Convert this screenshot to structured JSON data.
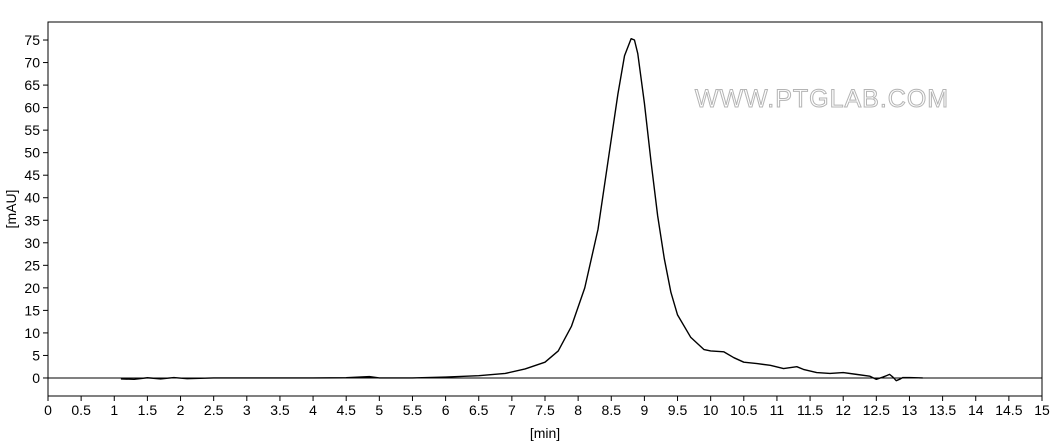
{
  "chart_data": {
    "type": "line",
    "title": "",
    "xlabel": "[min]",
    "ylabel": "[mAU]",
    "xlim": [
      0,
      15
    ],
    "ylim": [
      -4,
      79
    ],
    "x_ticks": [
      0,
      0.5,
      1,
      1.5,
      2,
      2.5,
      3,
      3.5,
      4,
      4.5,
      5,
      5.5,
      6,
      6.5,
      7,
      7.5,
      8,
      8.5,
      9,
      9.5,
      10,
      10.5,
      11,
      11.5,
      12,
      12.5,
      13,
      13.5,
      14,
      14.5,
      15
    ],
    "y_ticks": [
      0,
      5,
      10,
      15,
      20,
      25,
      30,
      35,
      40,
      45,
      50,
      55,
      60,
      65,
      70,
      75
    ],
    "grid": false,
    "baseline": 0,
    "line_color": "#000000",
    "series": [
      {
        "x": [
          1.1,
          1.3,
          1.5,
          1.7,
          1.9,
          2.1,
          2.5,
          3.0,
          3.5,
          4.0,
          4.5,
          4.85,
          5.0,
          5.5,
          6.0,
          6.5,
          6.9,
          7.2,
          7.5,
          7.7,
          7.9,
          8.1,
          8.3,
          8.45,
          8.6,
          8.7,
          8.8,
          8.85,
          8.9,
          9.0,
          9.1,
          9.2,
          9.3,
          9.4,
          9.5,
          9.7,
          9.9,
          10.0,
          10.2,
          10.35,
          10.5,
          10.7,
          10.9,
          11.1,
          11.3,
          11.4,
          11.6,
          11.8,
          12.0,
          12.2,
          12.4,
          12.5,
          12.6,
          12.65,
          12.7,
          12.75,
          12.8,
          12.85,
          12.9,
          13.0,
          13.2
        ],
        "y": [
          -0.2,
          -0.3,
          0.05,
          -0.2,
          0.1,
          -0.15,
          0,
          0,
          0,
          0,
          0.05,
          0.3,
          0,
          0,
          0.2,
          0.5,
          1.0,
          2.0,
          3.5,
          6.0,
          11.5,
          20.0,
          33.0,
          48.0,
          63.0,
          71.5,
          75.3,
          75.0,
          72.0,
          61.0,
          48.0,
          36.0,
          26.5,
          19.0,
          14.0,
          9.0,
          6.3,
          6.0,
          5.8,
          4.5,
          3.5,
          3.2,
          2.8,
          2.1,
          2.5,
          1.9,
          1.2,
          1.0,
          1.2,
          0.8,
          0.4,
          -0.3,
          0.2,
          0.5,
          0.8,
          0.2,
          -0.6,
          -0.3,
          0.1,
          0.1,
          0.0
        ]
      }
    ]
  },
  "watermark": "WWW.PTGLAB.COM"
}
